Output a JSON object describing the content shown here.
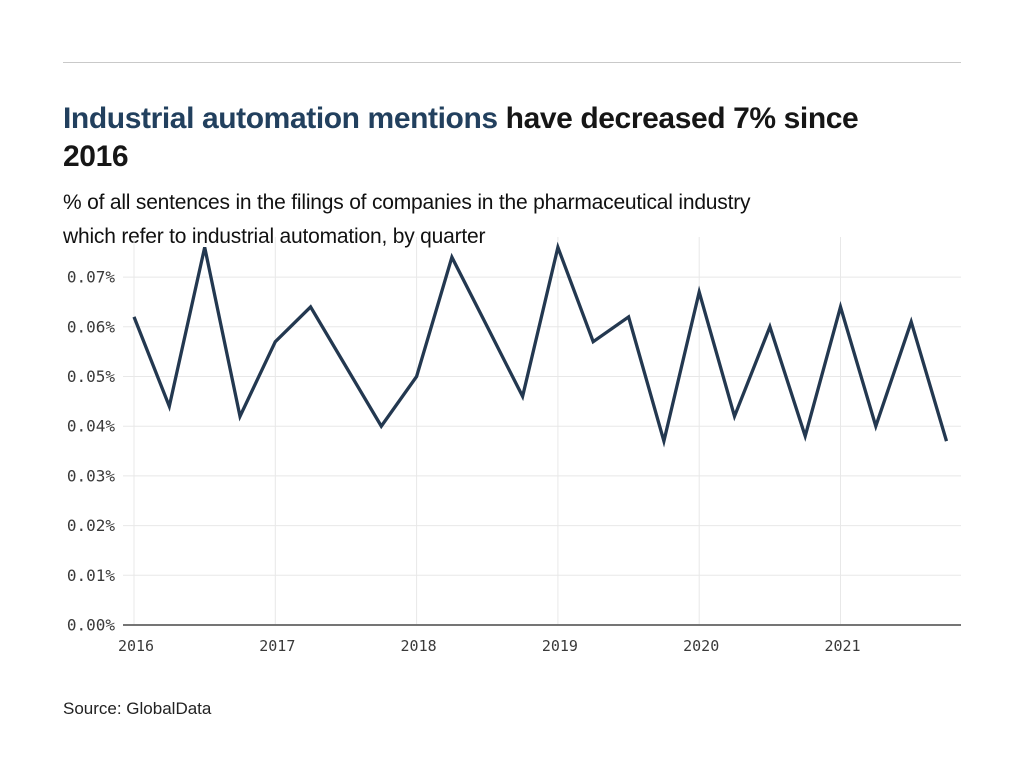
{
  "header": {
    "title_highlight": "Industrial automation mentions",
    "title_rest_line1": " have decreased 7% since",
    "title_line2": "2016",
    "subtitle_line1": "% of all sentences in the filings of companies in the pharmaceutical industry",
    "subtitle_line2": "which refer to industrial automation, by quarter"
  },
  "footer": {
    "source": "Source: GlobalData"
  },
  "colors": {
    "title_highlight": "#22405e",
    "title_text": "#161616",
    "line": "#233850",
    "grid": "#e8e8e8",
    "axis_line": "#757575",
    "tick_label": "#3a3a3a"
  },
  "chart_data": {
    "type": "line",
    "title": "Industrial automation mentions have decreased 7% since 2016",
    "subtitle": "% of all sentences in the filings of companies in the pharmaceutical industry which refer to industrial automation, by quarter",
    "source": "Source: GlobalData",
    "unit": "percent",
    "grid": true,
    "legend": false,
    "ylim": [
      0.0,
      0.077
    ],
    "y_tick_labels": [
      "0.00%",
      "0.01%",
      "0.02%",
      "0.03%",
      "0.04%",
      "0.05%",
      "0.06%",
      "0.07%"
    ],
    "x_tick_labels": [
      "2016",
      "2017",
      "2018",
      "2019",
      "2020",
      "2021"
    ],
    "categories": [
      "2016 Q1",
      "2016 Q2",
      "2016 Q3",
      "2016 Q4",
      "2017 Q1",
      "2017 Q2",
      "2017 Q3",
      "2017 Q4",
      "2018 Q1",
      "2018 Q2",
      "2018 Q3",
      "2018 Q4",
      "2019 Q1",
      "2019 Q2",
      "2019 Q3",
      "2019 Q4",
      "2020 Q1",
      "2020 Q2",
      "2020 Q3",
      "2020 Q4",
      "2021 Q1",
      "2021 Q2",
      "2021 Q3",
      "2021 Q4"
    ],
    "values": [
      0.062,
      0.044,
      0.076,
      0.042,
      0.057,
      0.064,
      0.052,
      0.04,
      0.05,
      0.074,
      0.06,
      0.046,
      0.076,
      0.057,
      0.062,
      0.037,
      0.067,
      0.042,
      0.06,
      0.038,
      0.064,
      0.04,
      0.061,
      0.037
    ]
  }
}
